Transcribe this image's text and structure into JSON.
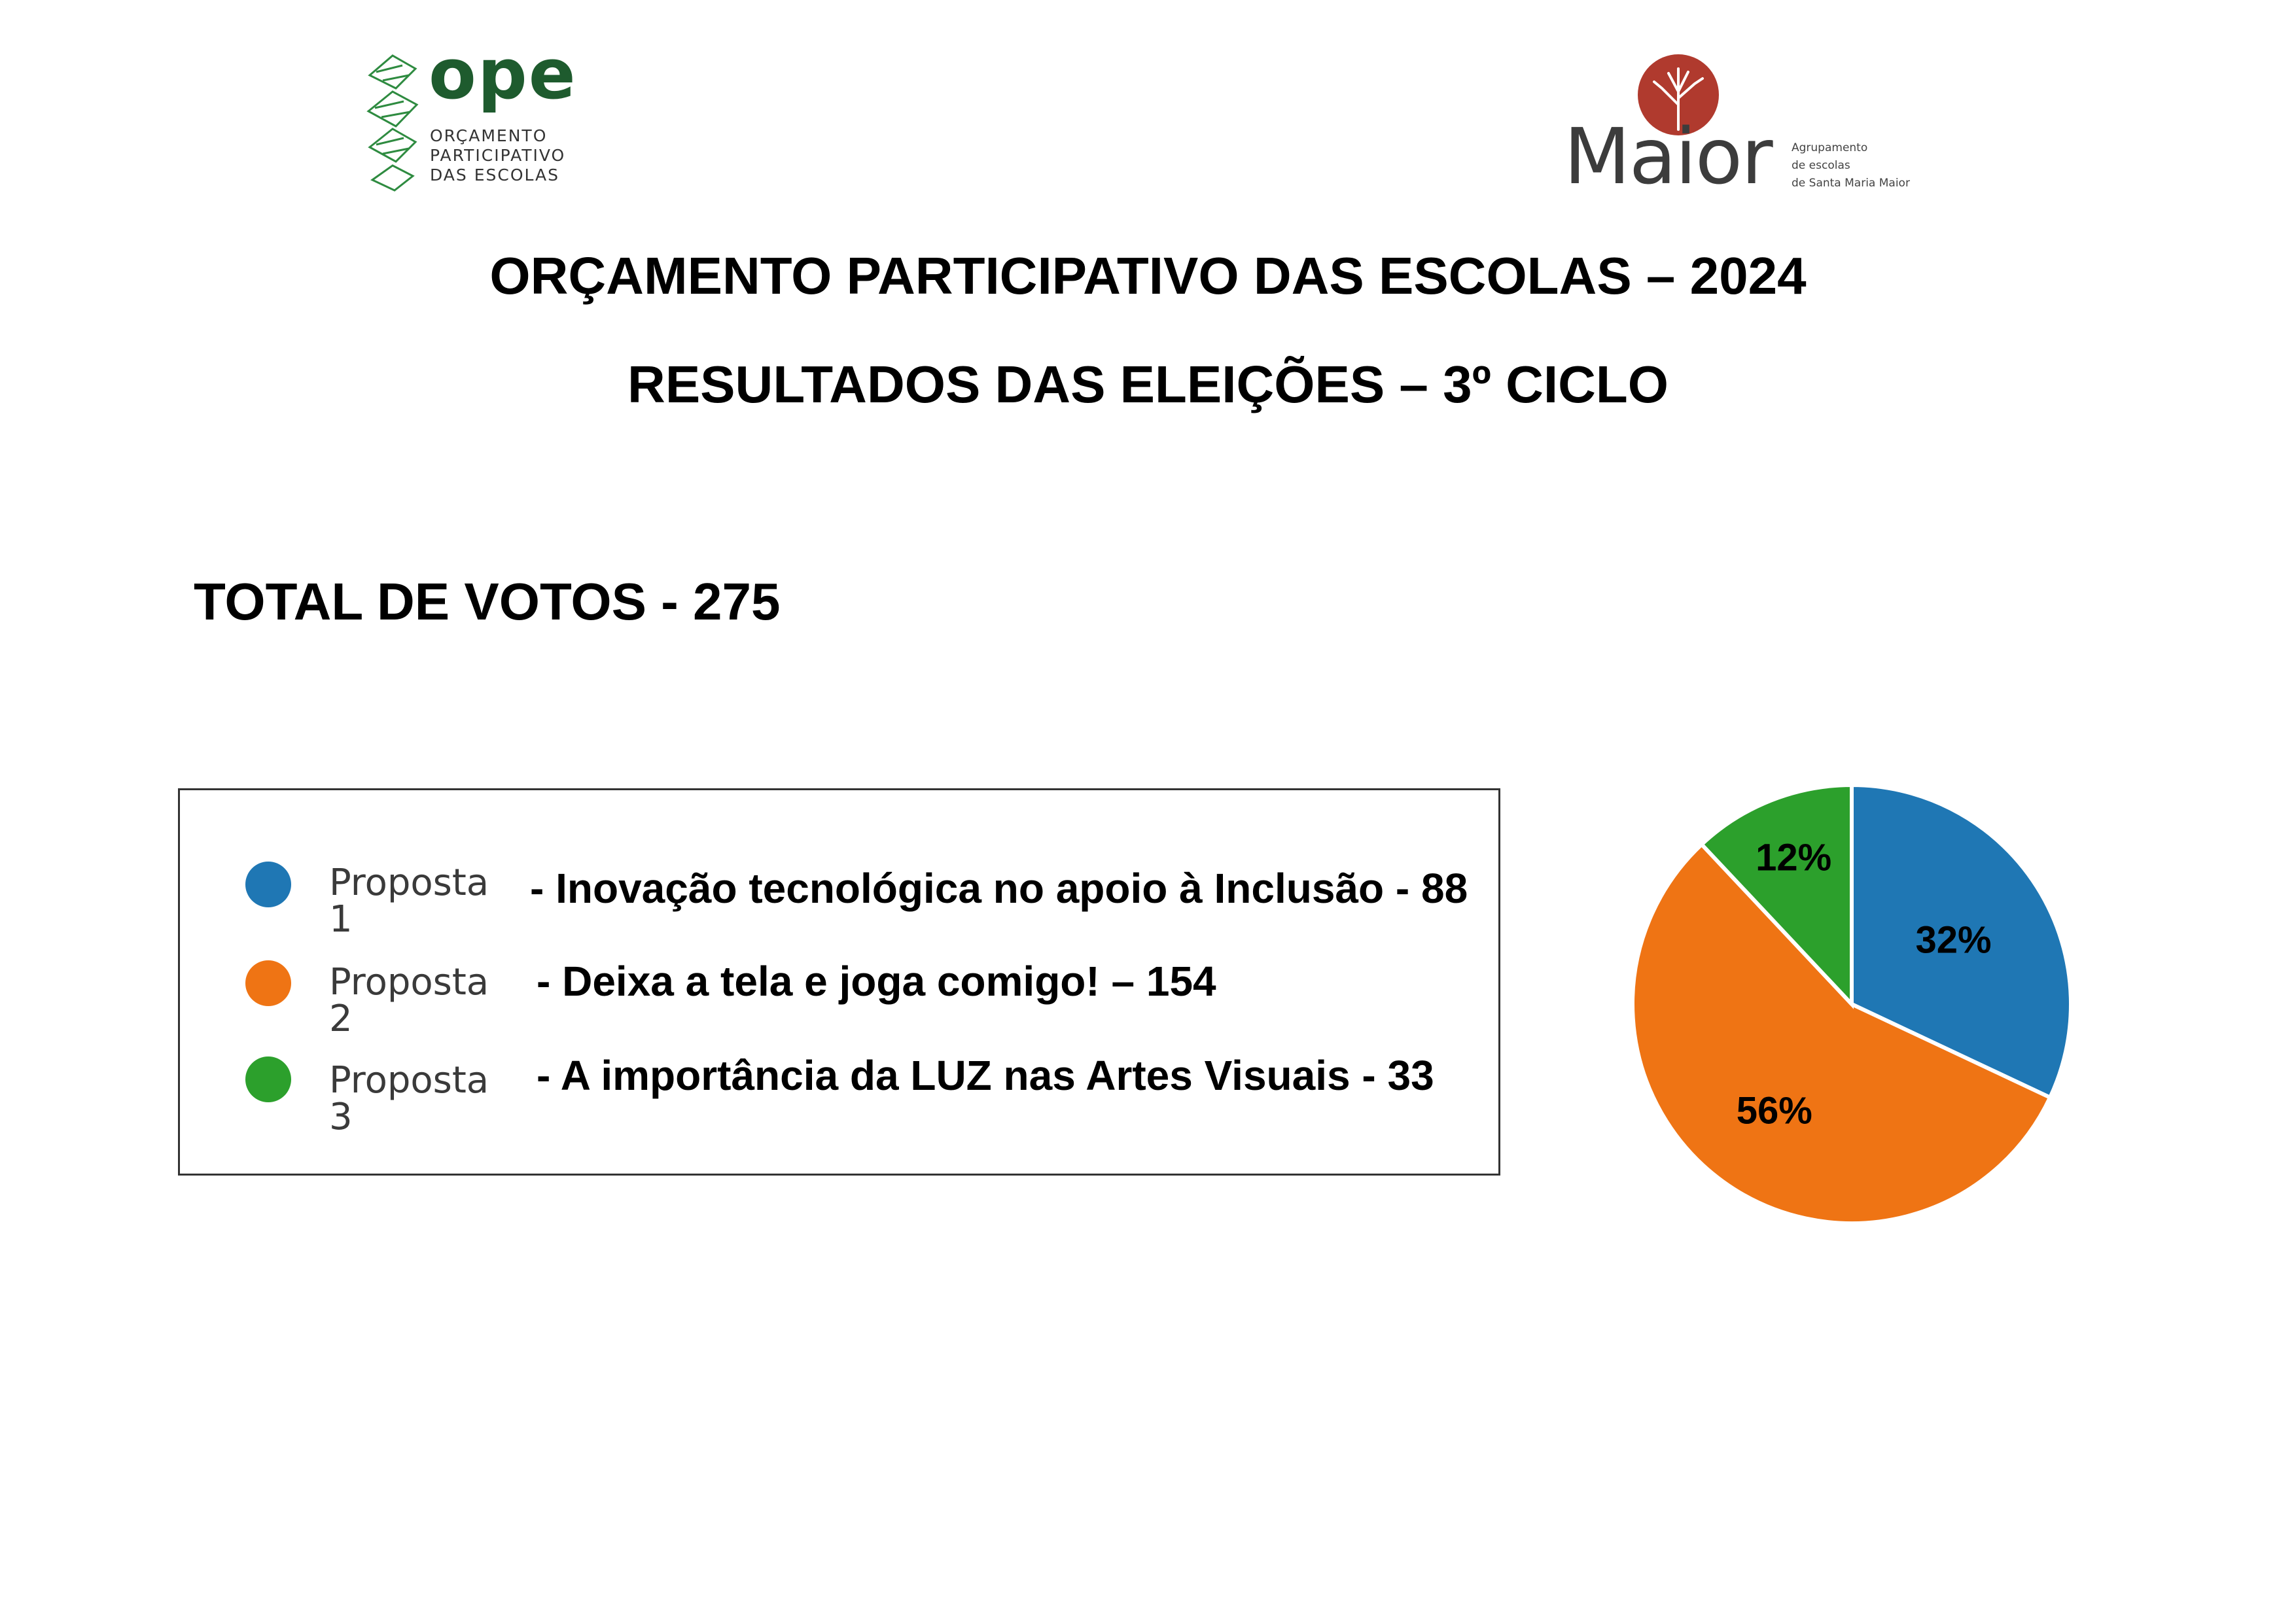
{
  "logos": {
    "ope": {
      "word": "ope",
      "lines": [
        "ORÇAMENTO",
        "PARTICIPATIVO",
        "DAS ESCOLAS"
      ],
      "colors": {
        "dark": "#1e5b2e",
        "light": "#2e9a48"
      }
    },
    "maior": {
      "word": "Maior",
      "lines": [
        "Agrupamento",
        "de escolas",
        "de Santa Maria Maior"
      ],
      "colors": {
        "tree": "#b03a2e",
        "text": "#3c3c3c"
      }
    }
  },
  "header": {
    "title": "ORÇAMENTO PARTICIPATIVO DAS ESCOLAS – 2024",
    "subtitle": "RESULTADOS DAS ELEIÇÕES – 3º CICLO"
  },
  "total": {
    "label": "TOTAL DE VOTOS - 275"
  },
  "chart_data": {
    "type": "pie",
    "title": "",
    "legend_position": "left",
    "categories": [
      "Proposta 1",
      "Proposta 2",
      "Proposta 3"
    ],
    "descriptions": [
      "- Inovação tecnológica no apoio à Inclusão - 88",
      "- Deixa a tela e joga comigo! – 154",
      "- A importância da LUZ nas Artes Visuais - 33"
    ],
    "values": [
      88,
      154,
      33
    ],
    "percent_labels": [
      "32%",
      "56%",
      "12%"
    ],
    "colors": [
      "#1f77b4",
      "#ef7414",
      "#2ca02c"
    ]
  }
}
